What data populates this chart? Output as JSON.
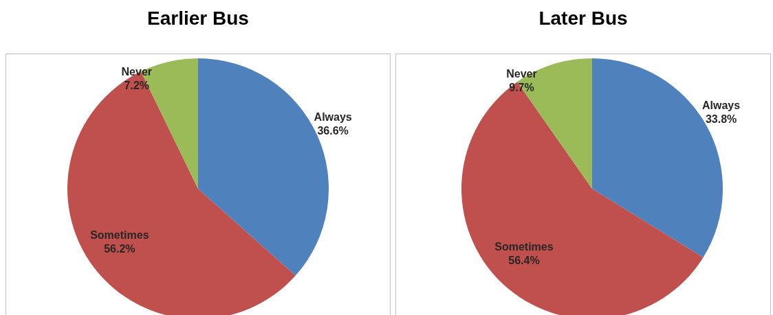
{
  "chart_data": [
    {
      "type": "pie",
      "title": "Earlier Bus",
      "categories": [
        "Always",
        "Sometimes",
        "Never"
      ],
      "values": [
        36.6,
        56.2,
        7.2
      ],
      "value_labels": [
        "36.6%",
        "56.2%",
        "7.2%"
      ],
      "colors": [
        "#4f81bd",
        "#c0504d",
        "#9bbb59"
      ],
      "legend": false
    },
    {
      "type": "pie",
      "title": "Later Bus",
      "categories": [
        "Always",
        "Sometimes",
        "Never"
      ],
      "values": [
        33.8,
        56.4,
        9.7
      ],
      "value_labels": [
        "33.8%",
        "56.4%",
        "9.7%"
      ],
      "colors": [
        "#4f81bd",
        "#c0504d",
        "#9bbb59"
      ],
      "legend": false
    }
  ]
}
